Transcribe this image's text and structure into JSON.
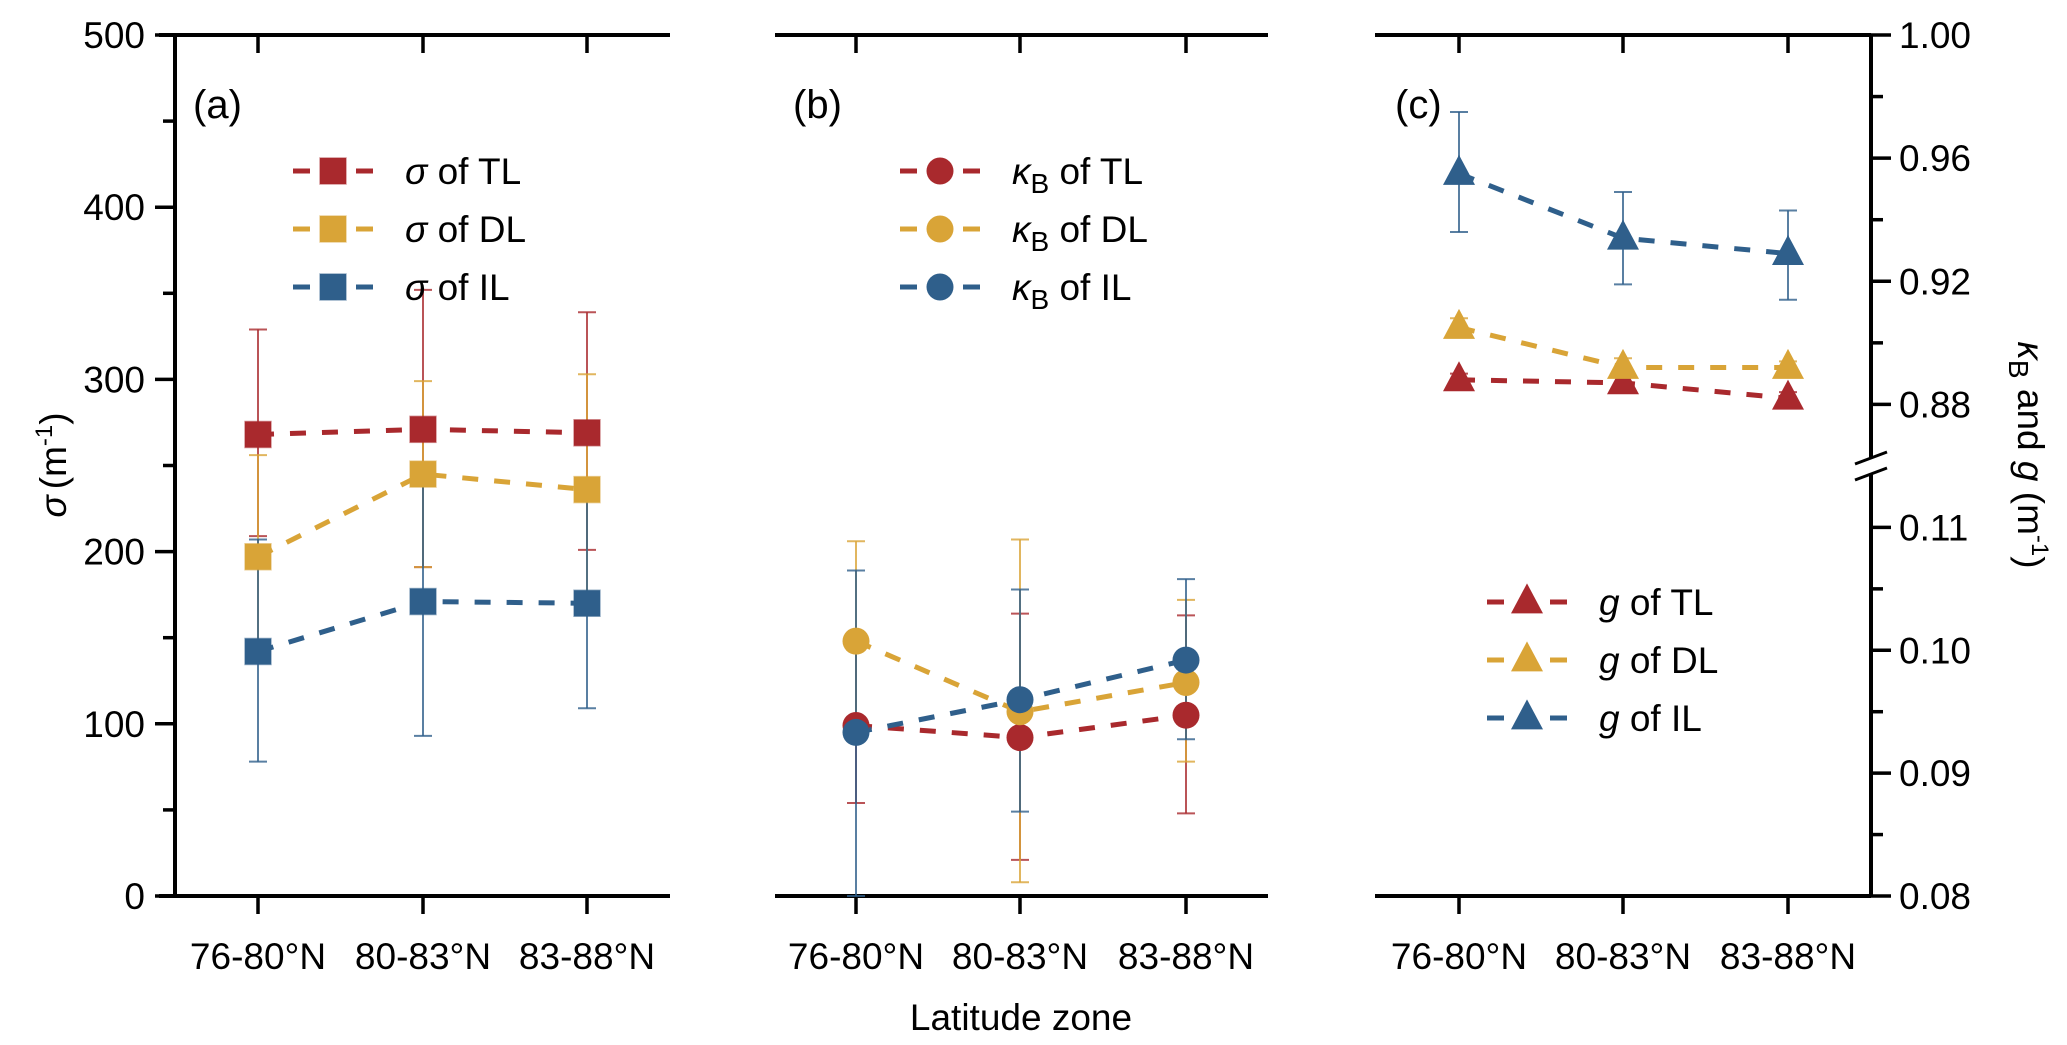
{
  "figure": {
    "xlabel": "Latitude zone",
    "colors": {
      "TL": "#a9292d",
      "DL": "#d9a437",
      "IL": "#2f5f8b"
    }
  },
  "chart_data": [
    {
      "id": "a",
      "type": "line",
      "panel_label": "(a)",
      "marker": "square",
      "categories": [
        "76-80°N",
        "80-83°N",
        "83-88°N"
      ],
      "ylabel": "σ (m⁻¹)",
      "ylabel_parts": {
        "symbol": "σ",
        "unit_base": "(m",
        "unit_sup": "-1",
        "unit_close": ")"
      },
      "ylim": [
        0,
        500
      ],
      "yticks": [
        0,
        100,
        200,
        300,
        400,
        500
      ],
      "minor_step": 50,
      "axis_side": "left",
      "legend_position": "top-center",
      "series": [
        {
          "key": "TL",
          "name": "σ of TL",
          "symbol": "σ",
          "sub": "",
          "rest": " of TL",
          "values": [
            268,
            271,
            269
          ],
          "err_upper": [
            329,
            352,
            339
          ],
          "err_lower": [
            209,
            191,
            201
          ]
        },
        {
          "key": "DL",
          "name": "σ of DL",
          "symbol": "σ",
          "sub": "",
          "rest": " of DL",
          "values": [
            197,
            245,
            236
          ],
          "err_upper": [
            256,
            299,
            303
          ],
          "err_lower": [
            139,
            191,
            172
          ]
        },
        {
          "key": "IL",
          "name": "σ of IL",
          "symbol": "σ",
          "sub": "",
          "rest": " of IL",
          "values": [
            142,
            171,
            170
          ],
          "err_upper": [
            207,
            245,
            233
          ],
          "err_lower": [
            78,
            93,
            109
          ]
        }
      ]
    },
    {
      "id": "b",
      "type": "line",
      "panel_label": "(b)",
      "marker": "circle",
      "categories": [
        "76-80°N",
        "80-83°N",
        "83-88°N"
      ],
      "ylim": [
        0,
        500
      ],
      "axis_side": "none",
      "legend_position": "top-center",
      "series": [
        {
          "key": "TL",
          "name": "κB of TL",
          "symbol": "κ",
          "sub": "B",
          "rest": " of TL",
          "values": [
            99,
            92,
            105
          ],
          "err_upper": [
            144,
            164,
            163
          ],
          "err_lower": [
            54,
            21,
            48
          ]
        },
        {
          "key": "DL",
          "name": "κB of DL",
          "symbol": "κ",
          "sub": "B",
          "rest": " of DL",
          "values": [
            148,
            107,
            124
          ],
          "err_upper": [
            206,
            207,
            172
          ],
          "err_lower": [
            92,
            8,
            78
          ]
        },
        {
          "key": "IL",
          "name": "κB of IL",
          "symbol": "κ",
          "sub": "B",
          "rest": " of IL",
          "values": [
            95,
            114,
            137
          ],
          "err_upper": [
            189,
            178,
            184
          ],
          "err_lower": [
            0,
            49,
            91
          ]
        }
      ]
    },
    {
      "id": "c",
      "type": "line",
      "panel_label": "(c)",
      "marker": "triangle",
      "categories": [
        "76-80°N",
        "80-83°N",
        "83-88°N"
      ],
      "ylabel": "κB and g (m⁻¹)",
      "ylabel_parts": {
        "k": "κ",
        "sub": "B",
        "mid": " and ",
        "g": "g",
        "unit_base": " (m",
        "unit_sup": "-1",
        "unit_close": ")"
      },
      "axis_side": "right",
      "broken_axis": {
        "lower": {
          "range": [
            0.08,
            0.115
          ],
          "ticks": [
            "0.08",
            "0.09",
            "0.10",
            "0.11"
          ],
          "minor_step": 0.005
        },
        "upper": {
          "range": [
            0.86,
            1.0
          ],
          "ticks": [
            "0.88",
            "0.92",
            "0.96",
            "1.00"
          ],
          "minor_step": 0.02
        }
      },
      "legend_position": "center-right",
      "series": [
        {
          "key": "TL",
          "name": "g of TL",
          "symbol": "g",
          "sub": "",
          "rest": " of TL",
          "values": [
            0.888,
            0.887,
            0.882
          ],
          "err_upper": [
            0.89,
            0.889,
            0.884
          ],
          "err_lower": [
            0.886,
            0.885,
            0.88
          ]
        },
        {
          "key": "DL",
          "name": "g of DL",
          "symbol": "g",
          "sub": "",
          "rest": " of DL",
          "values": [
            0.905,
            0.892,
            0.892
          ],
          "err_upper": [
            0.908,
            0.895,
            0.894
          ],
          "err_lower": [
            0.902,
            0.89,
            0.89
          ]
        },
        {
          "key": "IL",
          "name": "g of IL",
          "symbol": "g",
          "sub": "",
          "rest": " of IL",
          "values": [
            0.955,
            0.934,
            0.929
          ],
          "err_upper": [
            0.975,
            0.949,
            0.943
          ],
          "err_lower": [
            0.936,
            0.919,
            0.914
          ]
        }
      ]
    }
  ]
}
